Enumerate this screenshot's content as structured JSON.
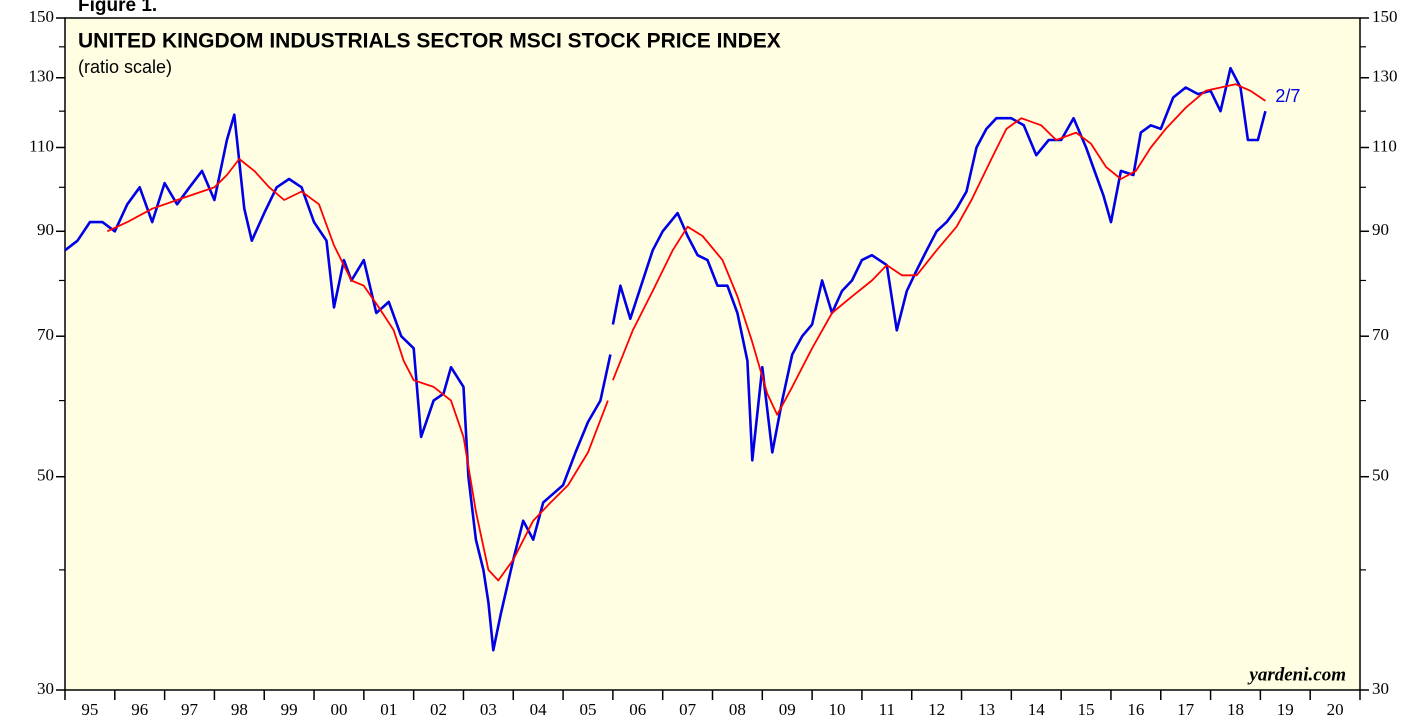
{
  "chart_data": {
    "type": "line",
    "figure_label": "Figure 1.",
    "title": "UNITED KINGDOM INDUSTRIALS SECTOR MSCI STOCK PRICE INDEX",
    "subtitle": "(ratio scale)",
    "annotation": "2/7",
    "source": "yardeni.com",
    "log_scale": true,
    "background": "#fffee3",
    "ylim": [
      30,
      150
    ],
    "yticks": [
      30,
      50,
      70,
      90,
      110,
      130,
      150
    ],
    "yminorticks": [
      40,
      60,
      80,
      100,
      120,
      140
    ],
    "xlim": [
      1995,
      2021
    ],
    "xticks": [
      1995,
      1996,
      1997,
      1998,
      1999,
      2000,
      2001,
      2002,
      2003,
      2004,
      2005,
      2006,
      2007,
      2008,
      2009,
      2010,
      2011,
      2012,
      2013,
      2014,
      2015,
      2016,
      2017,
      2018,
      2019,
      2020,
      2021
    ],
    "year_labels": [
      "95",
      "96",
      "97",
      "98",
      "99",
      "00",
      "01",
      "02",
      "03",
      "04",
      "05",
      "06",
      "07",
      "08",
      "09",
      "10",
      "11",
      "12",
      "13",
      "14",
      "15",
      "16",
      "17",
      "18",
      "19",
      "20"
    ],
    "series": [
      {
        "color": "#0000e6",
        "x": [
          1995.0,
          1995.25,
          1995.5,
          1995.75,
          1996.0,
          1996.25,
          1996.5,
          1996.75,
          1997.0,
          1997.25,
          1997.5,
          1997.75,
          1998.0,
          1998.25,
          1998.4,
          1998.6,
          1998.75,
          1999.0,
          1999.25,
          1999.5,
          1999.75,
          2000.0,
          2000.25,
          2000.4,
          2000.6,
          2000.75,
          2001.0,
          2001.25,
          2001.5,
          2001.75,
          2002.0,
          2002.15,
          2002.4,
          2002.6,
          2002.75,
          2003.0,
          2003.1,
          2003.25,
          2003.4,
          2003.5,
          2003.6,
          2003.75,
          2004.0,
          2004.2,
          2004.4,
          2004.6,
          2004.8,
          2005.0,
          2005.25,
          2005.5,
          2005.75,
          2005.95,
          null,
          2006.0,
          2006.15,
          2006.35,
          2006.6,
          2006.8,
          2007.0,
          2007.3,
          2007.5,
          2007.7,
          2007.9,
          2008.1,
          2008.3,
          2008.5,
          2008.7,
          2008.8,
          2009.0,
          2009.2,
          2009.4,
          2009.6,
          2009.8,
          2010.0,
          2010.2,
          2010.4,
          2010.6,
          2010.8,
          2011.0,
          2011.2,
          2011.5,
          2011.7,
          2011.9,
          2012.1,
          2012.3,
          2012.5,
          2012.7,
          2012.9,
          2013.1,
          2013.3,
          2013.5,
          2013.7,
          2014.0,
          2014.25,
          2014.5,
          2014.75,
          2015.0,
          2015.25,
          2015.5,
          2015.7,
          2015.85,
          2016.0,
          2016.2,
          2016.45,
          2016.6,
          2016.8,
          2017.0,
          2017.25,
          2017.5,
          2017.75,
          2018.0,
          2018.2,
          2018.4,
          2018.6,
          2018.75,
          2018.95,
          2019.1
        ],
        "values": [
          86,
          88,
          92,
          92,
          90,
          96,
          100,
          92,
          101,
          96,
          100,
          104,
          97,
          112,
          119,
          95,
          88,
          94,
          100,
          102,
          100,
          92,
          88,
          75,
          84,
          80,
          84,
          74,
          76,
          70,
          68,
          55,
          60,
          61,
          65,
          62,
          50,
          43,
          40,
          37,
          33,
          36,
          41,
          45,
          43,
          47,
          48,
          49,
          53,
          57,
          60,
          67,
          null,
          72,
          79,
          73,
          80,
          86,
          90,
          94,
          89,
          85,
          84,
          79,
          79,
          74,
          66,
          52,
          65,
          53,
          60,
          67,
          70,
          72,
          80,
          74,
          78,
          80,
          84,
          85,
          83,
          71,
          78,
          82,
          86,
          90,
          92,
          95,
          99,
          110,
          115,
          118,
          118,
          116,
          108,
          112,
          112,
          118,
          110,
          103,
          98,
          92,
          104,
          103,
          114,
          116,
          115,
          124,
          127,
          125,
          126,
          120,
          133,
          127,
          112,
          112,
          120
        ]
      },
      {
        "color": "#ff0000",
        "x": [
          1995.85,
          1996.25,
          1996.75,
          1997.25,
          1997.75,
          1998.0,
          1998.25,
          1998.5,
          1998.8,
          1999.1,
          1999.4,
          1999.75,
          2000.1,
          2000.4,
          2000.75,
          2001.0,
          2001.3,
          2001.6,
          2001.8,
          2002.0,
          2002.4,
          2002.75,
          2003.0,
          2003.25,
          2003.5,
          2003.7,
          2004.0,
          2004.4,
          2004.75,
          2005.1,
          2005.5,
          2005.9,
          null,
          2006.0,
          2006.4,
          2006.8,
          2007.2,
          2007.5,
          2007.8,
          2008.2,
          2008.5,
          2008.8,
          2009.1,
          2009.3,
          2009.6,
          2010.0,
          2010.4,
          2010.8,
          2011.2,
          2011.5,
          2011.8,
          2012.1,
          2012.5,
          2012.9,
          2013.2,
          2013.6,
          2013.9,
          2014.2,
          2014.6,
          2014.9,
          2015.3,
          2015.6,
          2015.9,
          2016.2,
          2016.5,
          2016.8,
          2017.1,
          2017.5,
          2017.9,
          2018.2,
          2018.5,
          2018.8,
          2019.1
        ],
        "values": [
          90,
          92,
          95,
          97,
          99,
          100,
          103,
          107,
          104,
          100,
          97,
          99,
          96,
          87,
          80,
          79,
          75,
          71,
          66,
          63,
          62,
          60,
          55,
          46,
          40,
          39,
          41,
          45,
          47,
          49,
          53,
          60,
          null,
          63,
          71,
          78,
          86,
          91,
          89,
          84,
          77,
          69,
          61,
          58,
          62,
          68,
          74,
          77,
          80,
          83,
          81,
          81,
          86,
          91,
          97,
          107,
          115,
          118,
          116,
          112,
          114,
          111,
          105,
          102,
          104,
          110,
          115,
          121,
          126,
          127,
          128,
          126,
          123
        ]
      }
    ]
  }
}
